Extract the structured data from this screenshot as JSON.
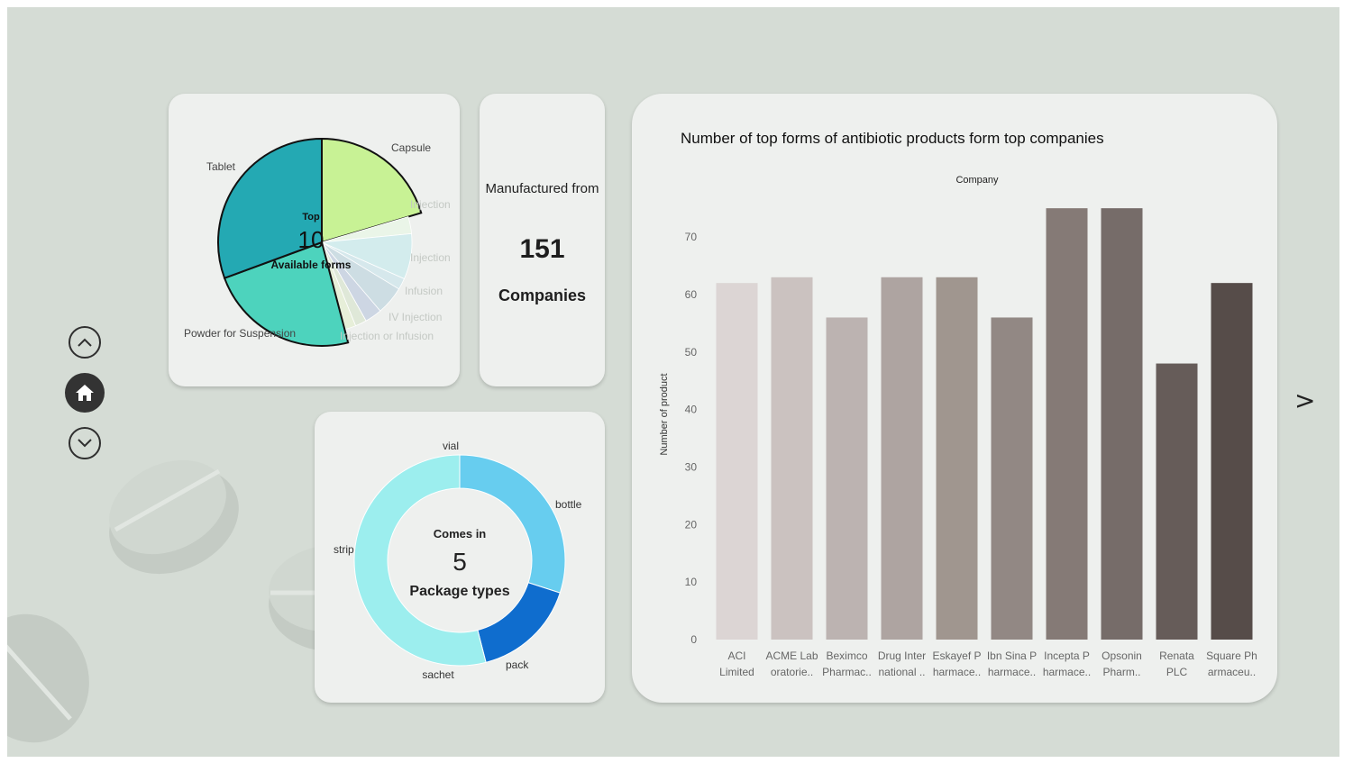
{
  "nav": {
    "up_icon": "chevron-up-icon",
    "home_icon": "home-icon",
    "down_icon": "chevron-down-icon",
    "next_label": ">"
  },
  "forms_card": {
    "title_small": "Top",
    "count": "10",
    "subtitle": "Available forms"
  },
  "companies_card": {
    "line1": "Manufactured from",
    "count": "151",
    "line2": "Companies"
  },
  "package_card": {
    "title_small": "Comes in",
    "count": "5",
    "subtitle": "Package types"
  },
  "bar_panel": {
    "title": "Number of top forms of antibiotic products form top companies"
  },
  "chart_data": [
    {
      "type": "pie",
      "title": "",
      "slices": [
        {
          "label": "Capsule",
          "value": 20,
          "color": "#c8f295",
          "highlight": true
        },
        {
          "label": "Injection",
          "value": 3,
          "color": "#eaf5e8",
          "highlight": false
        },
        {
          "label": "Injection",
          "value": 8,
          "color": "#d3eced",
          "highlight": false
        },
        {
          "label": "",
          "value": 2,
          "color": "#d6e8ec",
          "highlight": false
        },
        {
          "label": "Infusion",
          "value": 5,
          "color": "#cddde3",
          "highlight": false
        },
        {
          "label": "IV Injection",
          "value": 3,
          "color": "#cdd6e3",
          "highlight": false
        },
        {
          "label": "",
          "value": 2,
          "color": "#dfe8d8",
          "highlight": false
        },
        {
          "label": "Injection or Infusion",
          "value": 2,
          "color": "#e7efd9",
          "highlight": false
        },
        {
          "label": "Powder for Suspension",
          "value": 23,
          "color": "#4dd3bd",
          "highlight": true
        },
        {
          "label": "Tablet",
          "value": 30,
          "color": "#24a9b3",
          "highlight": true
        }
      ]
    },
    {
      "type": "pie",
      "title": "",
      "donut": true,
      "slices": [
        {
          "label": "bottle",
          "value": 30,
          "color": "#67cdef"
        },
        {
          "label": "pack",
          "value": 16,
          "color": "#0f6dce"
        },
        {
          "label": "sachet",
          "value": 0,
          "color": "#9ceeee"
        },
        {
          "label": "strip",
          "value": 54,
          "color": "#9ceeee"
        },
        {
          "label": "vial",
          "value": 0,
          "color": "#9ceeee"
        }
      ]
    },
    {
      "type": "bar",
      "title": "Company",
      "xlabel": "",
      "ylabel": "Number of product",
      "ylim": [
        0,
        78
      ],
      "yticks": [
        0,
        10,
        20,
        30,
        40,
        50,
        60,
        70
      ],
      "categories": [
        [
          "ACI",
          "Limited"
        ],
        [
          "ACME Lab",
          "oratorie.."
        ],
        [
          "Beximco",
          "Pharmac.."
        ],
        [
          "Drug Inter",
          "national .."
        ],
        [
          "Eskayef P",
          "harmace.."
        ],
        [
          "Ibn Sina P",
          "harmace.."
        ],
        [
          "Incepta P",
          "harmace.."
        ],
        [
          "Opsonin",
          "Pharm.."
        ],
        [
          "Renata",
          "PLC"
        ],
        [
          "Square Ph",
          "armaceu.."
        ]
      ],
      "values": [
        62,
        63,
        56,
        63,
        63,
        56,
        75,
        75,
        48,
        62
      ],
      "colors": [
        "#dcd5d4",
        "#cbc2c0",
        "#bcb3b1",
        "#aea4a1",
        "#a0968f",
        "#928884",
        "#857a76",
        "#766c69",
        "#665c59",
        "#564c49"
      ]
    }
  ]
}
